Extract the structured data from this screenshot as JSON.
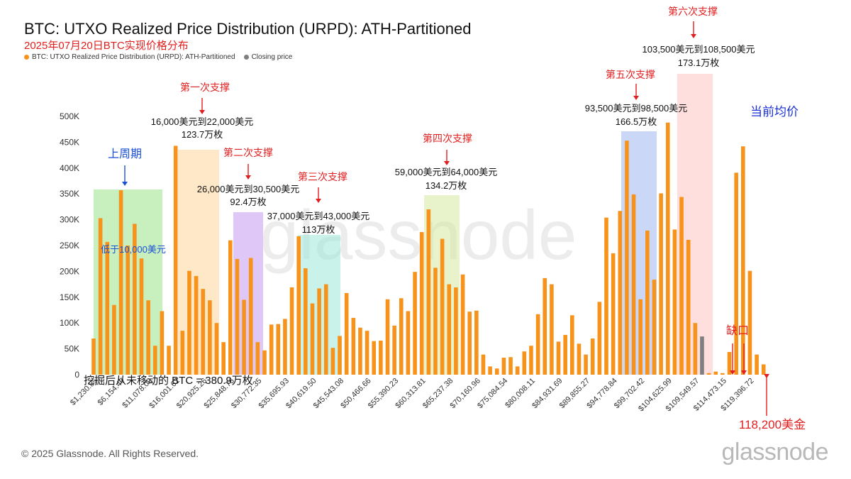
{
  "header": {
    "title": "BTC: UTXO Realized Price Distribution (URPD): ATH-Partitioned",
    "subtitle": "2025年07月20日BTC实现价格分布",
    "legend": [
      {
        "label": "BTC: UTXO Realized Price Distribution (URPD): ATH-Partitioned",
        "color": "#f7931a"
      },
      {
        "label": "Closing price",
        "color": "#7f7f7f"
      }
    ]
  },
  "footer": {
    "copyright": "© 2025 Glassnode. All Rights Reserved.",
    "logo": "glassnode",
    "watermark": "glassnode"
  },
  "chart_data": {
    "type": "bar",
    "ylim": [
      0,
      500000
    ],
    "y_ticks": [
      "0",
      "50K",
      "100K",
      "150K",
      "200K",
      "250K",
      "300K",
      "350K",
      "400K",
      "450K",
      "500K"
    ],
    "x_tick_labels": [
      "$1,230.85",
      "$6,154.47",
      "$11,078.09",
      "$16,001.62",
      "$20,925.26",
      "$25,848.76",
      "$30,772.35",
      "$35,695.93",
      "$40,619.50",
      "$45,543.08",
      "$50,466.66",
      "$55,390.23",
      "$60,313.81",
      "$65,237.38",
      "$70,160.96",
      "$75,084.54",
      "$80,008.11",
      "$84,931.69",
      "$89,855.27",
      "$94,778.84",
      "$99,702.42",
      "$104,625.99",
      "$109,549.57",
      "$114,473.15",
      "$119,396.72"
    ],
    "bar_color": "#f7931a",
    "closing_color": "#7f7f7f",
    "closing_index": 89,
    "values": [
      70000,
      303000,
      257000,
      135000,
      357000,
      250000,
      292000,
      225000,
      144000,
      56000,
      123000,
      56000,
      443000,
      85000,
      201000,
      191000,
      166000,
      144000,
      100000,
      63000,
      260000,
      224000,
      145000,
      226000,
      63000,
      47000,
      97000,
      98000,
      108000,
      169000,
      268000,
      206000,
      138000,
      167000,
      175000,
      52000,
      75000,
      158000,
      110000,
      91000,
      85000,
      65000,
      66000,
      146000,
      95000,
      148000,
      123000,
      199000,
      276000,
      320000,
      207000,
      263000,
      175000,
      169000,
      194000,
      122000,
      124000,
      39000,
      16000,
      12000,
      33000,
      34000,
      16000,
      45000,
      56000,
      117000,
      187000,
      175000,
      64000,
      77000,
      115000,
      60000,
      39000,
      70000,
      141000,
      304000,
      235000,
      317000,
      453000,
      349000,
      146000,
      279000,
      184000,
      351000,
      488000,
      281000,
      344000,
      261000,
      100000,
      74000,
      3000,
      6000,
      3000,
      44000,
      391000,
      442000,
      201000,
      39000,
      20000
    ],
    "annotations": {
      "prev_cycle_label": "上周期",
      "below_10k": "低于10,000美元",
      "support1_title": "第一次支撑",
      "support1_range": "16,000美元到22,000美元",
      "support1_amount": "123.7万枚",
      "support2_title": "第二次支撑",
      "support2_range": "26,000美元到30,500美元",
      "support2_amount": "92.4万枚",
      "support3_title": "第三次支撑",
      "support3_range": "37,000美元到43,000美元",
      "support3_amount": "113万枚",
      "support4_title": "第四次支撑",
      "support4_range": "59,000美元到64,000美元",
      "support4_amount": "134.2万枚",
      "support5_title": "第五次支撑",
      "support5_range": "93,500美元到98,500美元",
      "support5_amount": "166.5万枚",
      "support6_title": "第六次支撑",
      "support6_range": "103,500美元到108,500美元",
      "support6_amount": "173.1万枚",
      "current_avg": "当前均价",
      "gap": "缺口",
      "price_label": "118,200美金",
      "unmoved": "挖掘后从未移动的 BTC = 380.9万枚"
    }
  }
}
